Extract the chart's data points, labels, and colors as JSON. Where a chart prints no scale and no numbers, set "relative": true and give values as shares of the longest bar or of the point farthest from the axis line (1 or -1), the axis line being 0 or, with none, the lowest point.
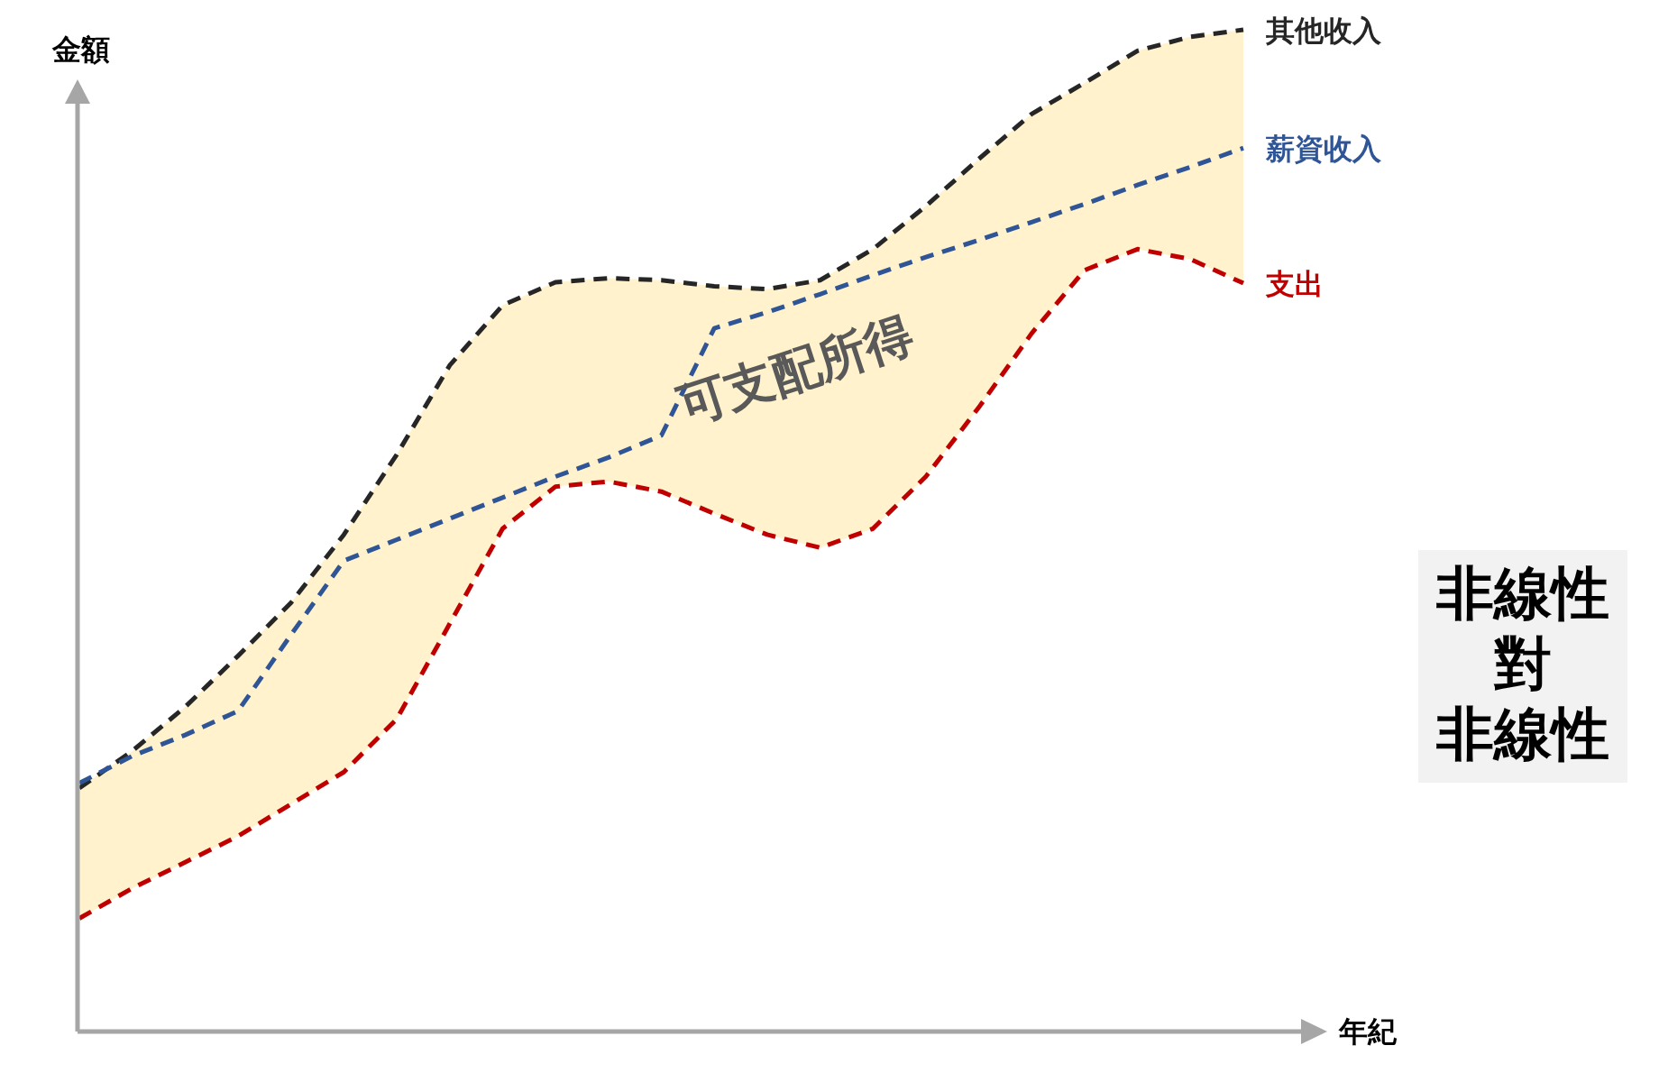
{
  "chart_data": {
    "type": "line",
    "relative": true,
    "xlabel": "年紀",
    "ylabel": "金額",
    "line_style": "dashed",
    "categories": [
      null,
      null,
      null,
      null,
      null,
      null,
      null,
      null,
      null,
      null,
      null,
      null,
      null,
      null,
      null,
      null,
      null,
      null,
      null,
      null,
      null,
      null,
      null
    ],
    "series": [
      {
        "name": "其他收入",
        "type": "area",
        "color": "#262626",
        "values": [
          0.243,
          0.28,
          0.324,
          0.375,
          0.428,
          0.496,
          0.576,
          0.665,
          0.725,
          0.748,
          0.752,
          0.75,
          0.744,
          0.741,
          0.75,
          0.781,
          0.824,
          0.871,
          0.916,
          0.947,
          0.979,
          0.993,
          1
        ]
      },
      {
        "name": "薪資收入",
        "color": "#2f5597",
        "values": [
          0.248,
          0.275,
          0.296,
          0.32,
          0.396,
          0.47,
          0.491,
          0.512,
          0.533,
          0.554,
          0.573,
          0.595,
          0.702,
          0.718,
          0.736,
          0.755,
          0.773,
          0.79,
          0.808,
          0.826,
          0.845,
          0.863,
          0.882
        ]
      },
      {
        "name": "支出",
        "color": "#c00000",
        "values": [
          0.113,
          0.143,
          0.169,
          0.195,
          0.227,
          0.259,
          0.312,
          0.407,
          0.502,
          0.544,
          0.549,
          0.539,
          0.517,
          0.496,
          0.483,
          0.502,
          0.554,
          0.623,
          0.697,
          0.76,
          0.781,
          0.771,
          0.747
        ]
      }
    ],
    "annotations": [
      "可支配所得",
      "非線性",
      "對",
      "非線性"
    ]
  }
}
